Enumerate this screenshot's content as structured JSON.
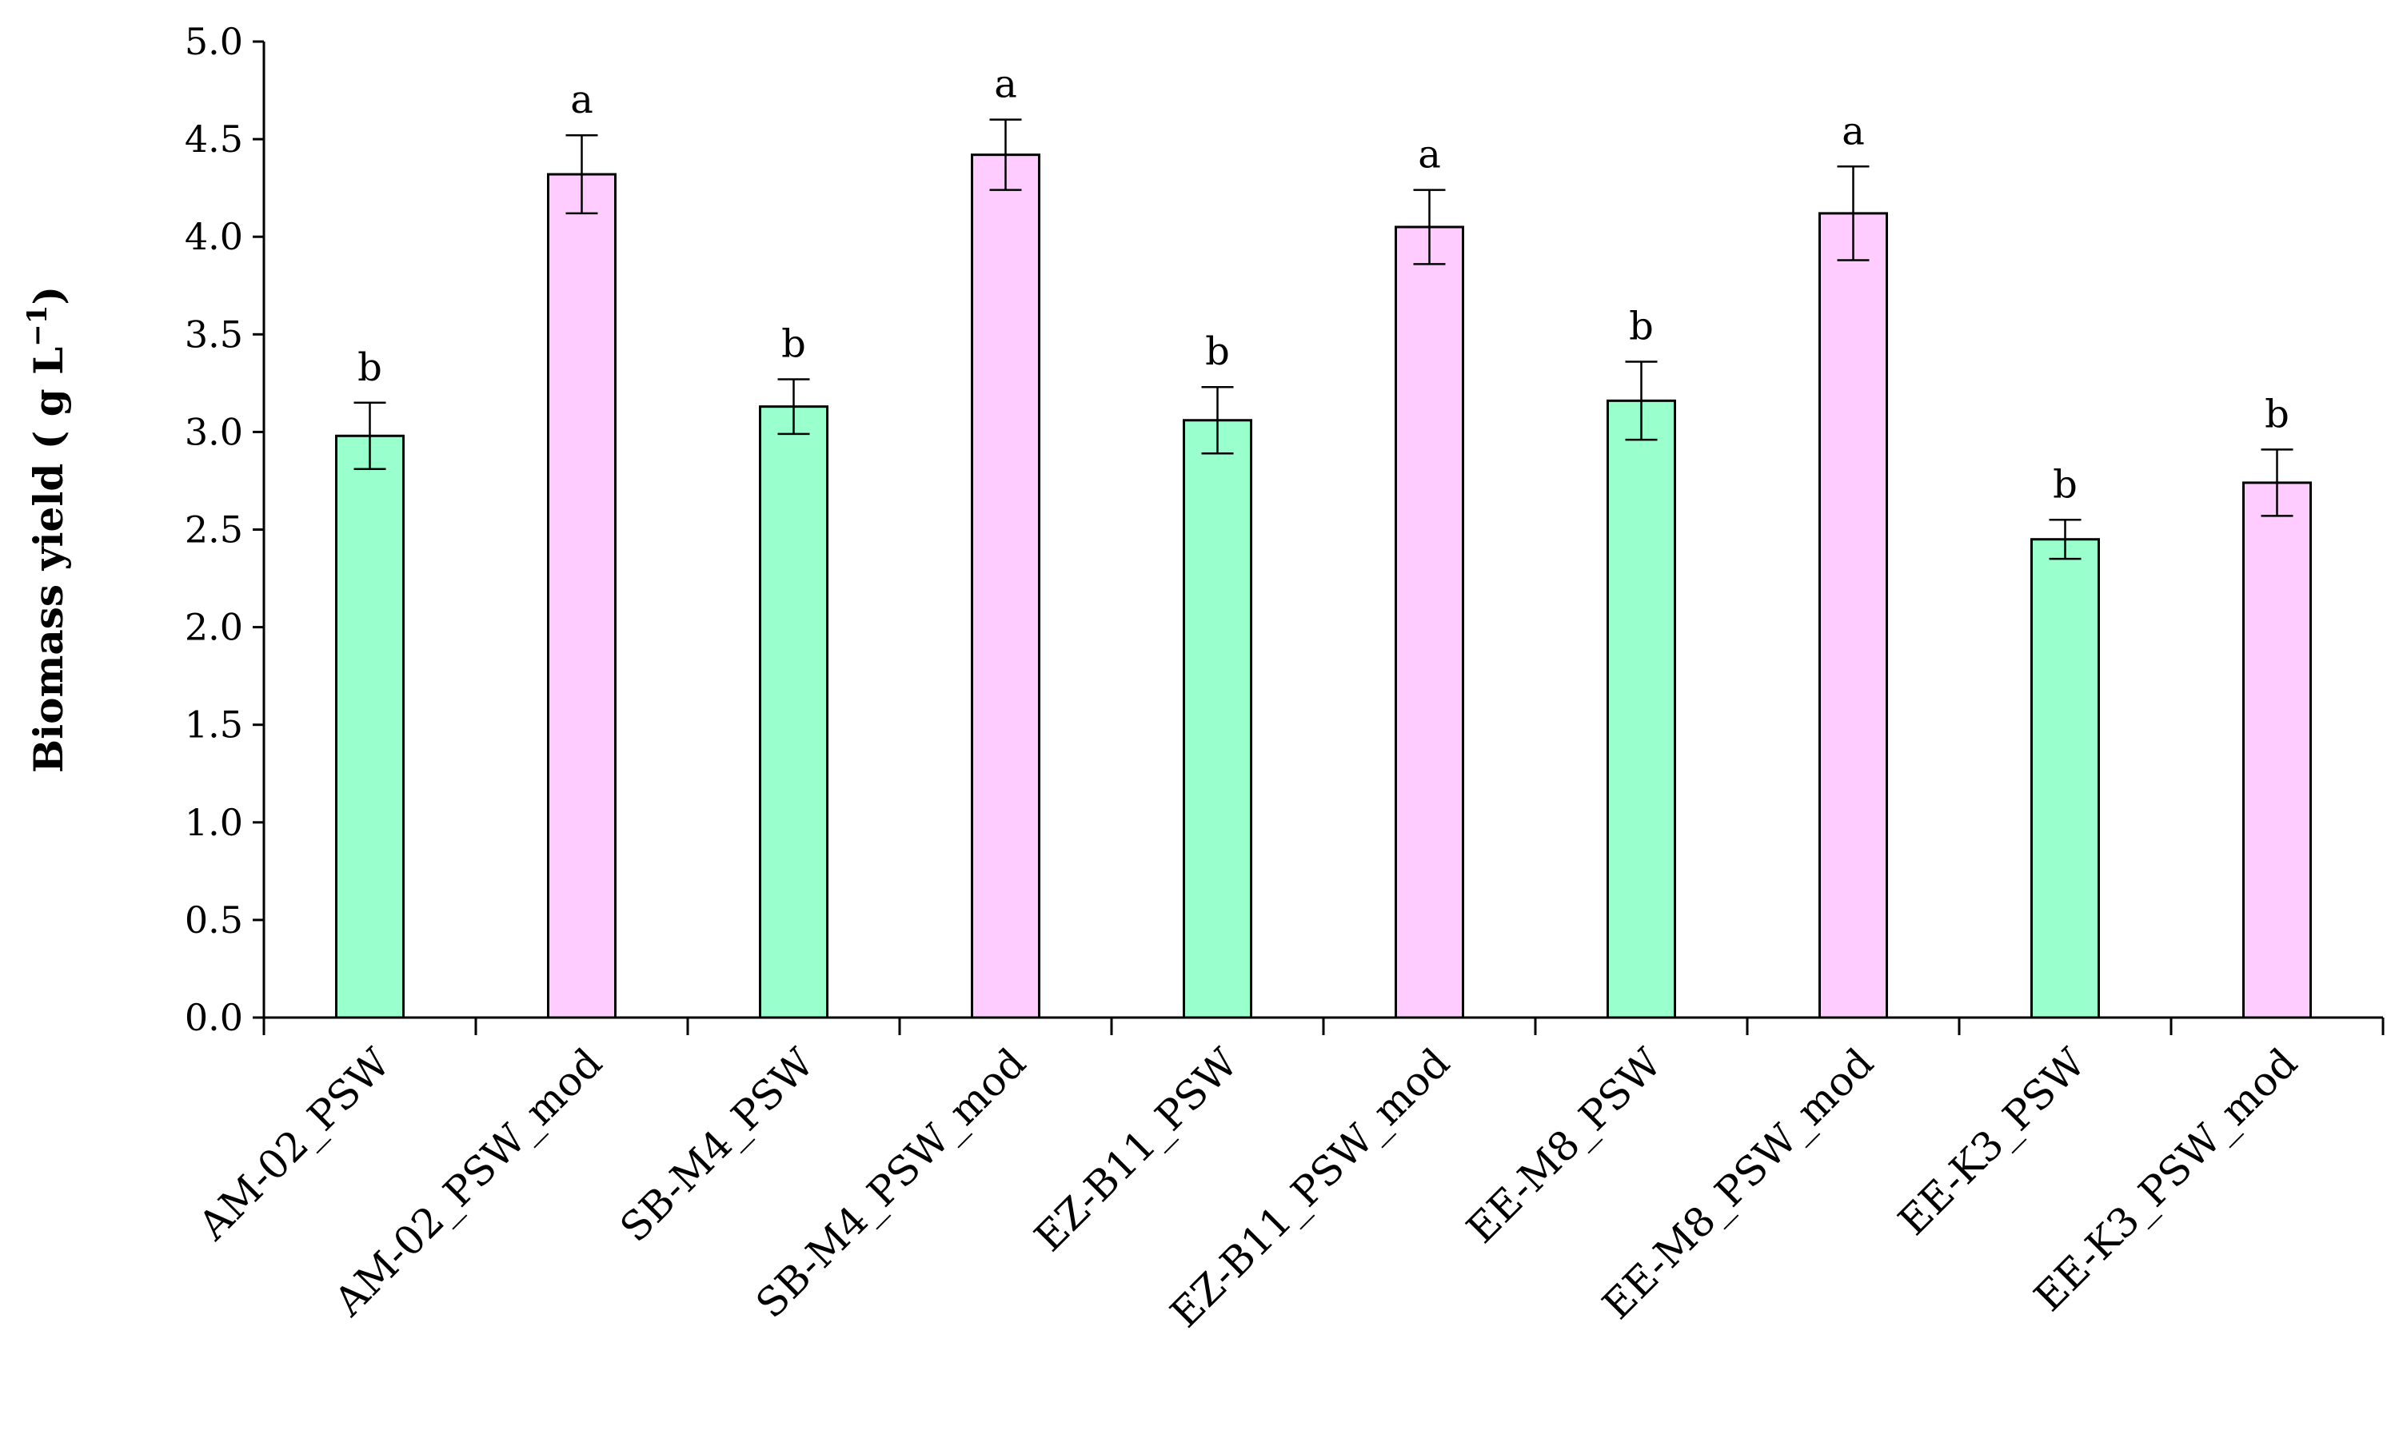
{
  "colors": {
    "psw": "#99ffcc",
    "psw_mod": "#ffccff"
  },
  "chart_data": {
    "type": "bar",
    "ylabel": "Biomass yield ( g L",
    "ylabel_sup": "−1",
    "ylabel_end": ")",
    "xlabel": "",
    "ylim": [
      0,
      5
    ],
    "yticks": [
      "0.0",
      "0.5",
      "1.0",
      "1.5",
      "2.0",
      "2.5",
      "3.0",
      "3.5",
      "4.0",
      "4.5",
      "5.0"
    ],
    "grid": false,
    "legend": "none",
    "categories": [
      "AM-02_PSW",
      "AM-02_PSW_mod",
      "SB-M4_PSW",
      "SB-M4_PSW_mod",
      "EZ-B11_PSW",
      "EZ-B11_PSW_mod",
      "EE-M8_PSW",
      "EE-M8_PSW_mod",
      "EE-K3_PSW",
      "EE-K3_PSW_mod"
    ],
    "values": [
      2.98,
      4.32,
      3.13,
      4.42,
      3.06,
      4.05,
      3.16,
      4.12,
      2.45,
      2.74
    ],
    "errors": [
      0.17,
      0.2,
      0.14,
      0.18,
      0.17,
      0.19,
      0.2,
      0.24,
      0.1,
      0.17
    ],
    "color_keys": [
      "psw",
      "psw_mod",
      "psw",
      "psw_mod",
      "psw",
      "psw_mod",
      "psw",
      "psw_mod",
      "psw",
      "psw_mod"
    ],
    "significance": [
      "b",
      "a",
      "b",
      "a",
      "b",
      "a",
      "b",
      "a",
      "b",
      "b"
    ]
  }
}
